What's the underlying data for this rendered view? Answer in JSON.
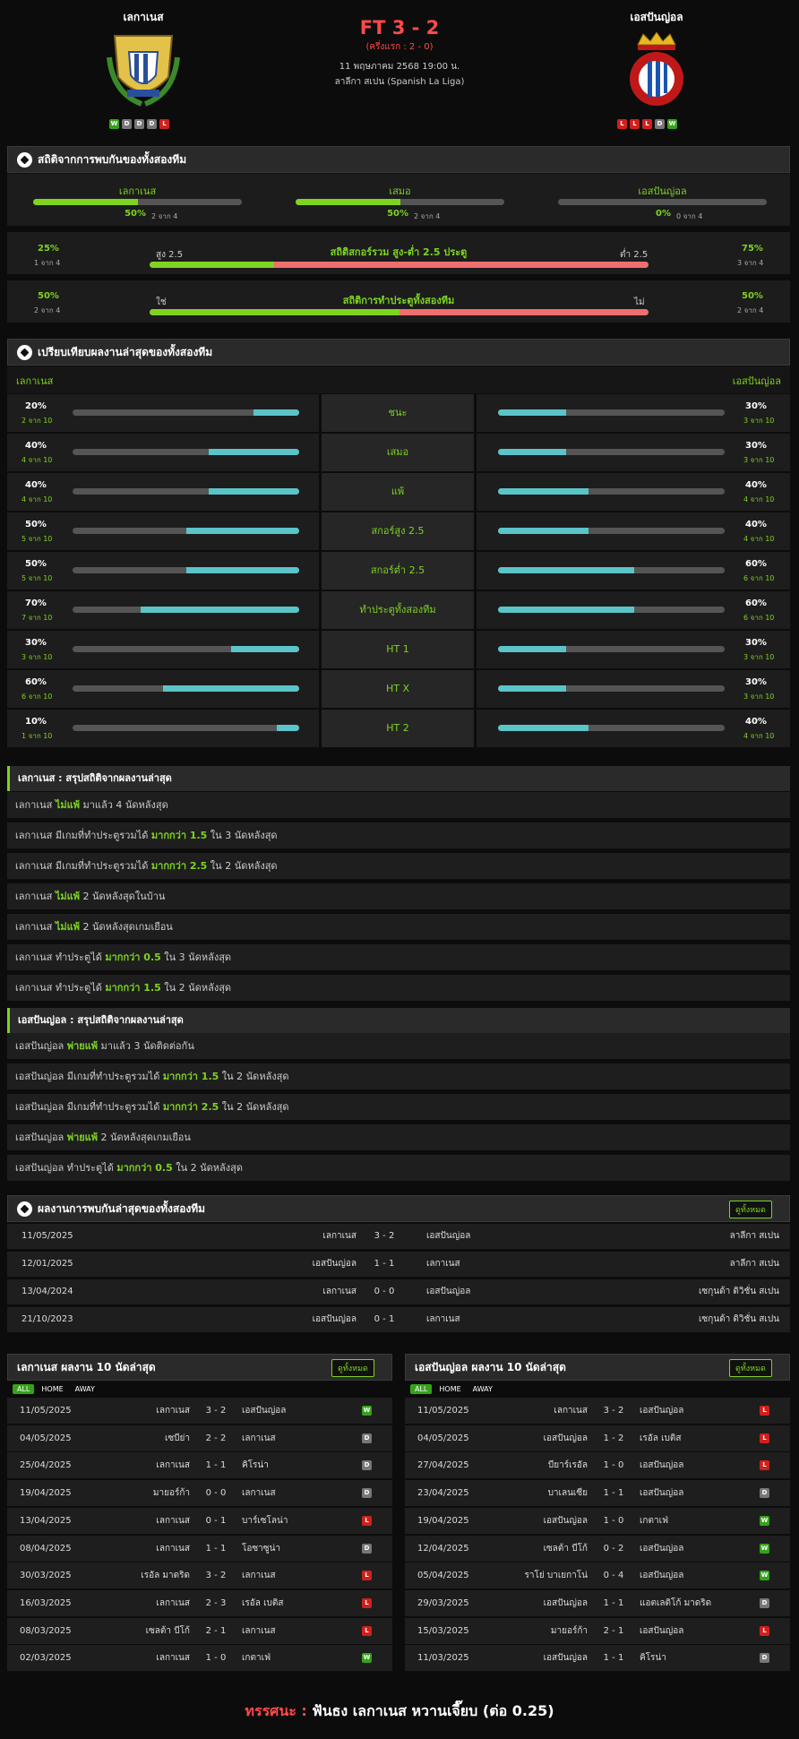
{
  "colors": {
    "accent": "#7ed321",
    "red": "#ff4a4a",
    "bar_green": "#7ed321",
    "bar_red": "#f06e6e",
    "bar_teal": "#5bc4c9"
  },
  "header": {
    "home_name": "เลกาเนส",
    "away_name": "เอสปันญ่อล",
    "score": "FT 3 - 2",
    "halftime": "(ครึ่งแรก : 2 - 0)",
    "datetime": "11 พฤษภาคม 2568 19:00 น.",
    "league": "ลาลีกา สเปน (Spanish La Liga)",
    "home_logo_text": "CLUB DEPORTIVO · S.A.D · LEGANES",
    "away_logo_text": "R.C.D. ESPANYOL · DE BARCELONA",
    "home_form": [
      "W",
      "D",
      "D",
      "D",
      "L"
    ],
    "away_form": [
      "L",
      "L",
      "L",
      "D",
      "W"
    ]
  },
  "h2h_stats": {
    "title": "สถิติจากการพบกันของทั้งสองทีม",
    "cols": [
      {
        "label": "เลกาเนส",
        "pct": "50%",
        "count": "2 จาก 4",
        "value": 0.5
      },
      {
        "label": "เสมอ",
        "pct": "50%",
        "count": "2 จาก 4",
        "value": 0.5
      },
      {
        "label": "เอสปันญ่อล",
        "pct": "0%",
        "count": "0 จาก 4",
        "value": 0
      }
    ]
  },
  "ou": {
    "title": "สถิติสกอร์รวม สูง-ต่ำ 2.5 ประตู",
    "left_pct": "25%",
    "left_count": "1 จาก 4",
    "left_label": "สูง 2.5",
    "right_label": "ต่ำ 2.5",
    "right_pct": "75%",
    "right_count": "3 จาก 4",
    "value": 0.25
  },
  "btts": {
    "title": "สถิติการทำประตูทั้งสองทีม",
    "left_pct": "50%",
    "left_count": "2 จาก 4",
    "left_label": "ใช่",
    "right_label": "ไม่",
    "right_pct": "50%",
    "right_count": "2 จาก 4",
    "value": 0.5
  },
  "compare": {
    "title": "เปรียบเทียบผลงานล่าสุดของทั้งสองทีม",
    "home": "เลกาเนส",
    "away": "เอสปันญ่อล",
    "rows": [
      {
        "label": "ชนะ",
        "h_pct": "20%",
        "h_cnt": "2 จาก 10",
        "h": 0.2,
        "a_pct": "30%",
        "a_cnt": "3 จาก 10",
        "a": 0.3
      },
      {
        "label": "เสมอ",
        "h_pct": "40%",
        "h_cnt": "4 จาก 10",
        "h": 0.4,
        "a_pct": "30%",
        "a_cnt": "3 จาก 10",
        "a": 0.3
      },
      {
        "label": "แพ้",
        "h_pct": "40%",
        "h_cnt": "4 จาก 10",
        "h": 0.4,
        "a_pct": "40%",
        "a_cnt": "4 จาก 10",
        "a": 0.4
      },
      {
        "label": "สกอร์สูง 2.5",
        "h_pct": "50%",
        "h_cnt": "5 จาก 10",
        "h": 0.5,
        "a_pct": "40%",
        "a_cnt": "4 จาก 10",
        "a": 0.4
      },
      {
        "label": "สกอร์ต่ำ 2.5",
        "h_pct": "50%",
        "h_cnt": "5 จาก 10",
        "h": 0.5,
        "a_pct": "60%",
        "a_cnt": "6 จาก 10",
        "a": 0.6
      },
      {
        "label": "ทำประตูทั้งสองทีม",
        "h_pct": "70%",
        "h_cnt": "7 จาก 10",
        "h": 0.7,
        "a_pct": "60%",
        "a_cnt": "6 จาก 10",
        "a": 0.6
      },
      {
        "label": "HT 1",
        "h_pct": "30%",
        "h_cnt": "3 จาก 10",
        "h": 0.3,
        "a_pct": "30%",
        "a_cnt": "3 จาก 10",
        "a": 0.3
      },
      {
        "label": "HT X",
        "h_pct": "60%",
        "h_cnt": "6 จาก 10",
        "h": 0.6,
        "a_pct": "30%",
        "a_cnt": "3 จาก 10",
        "a": 0.3
      },
      {
        "label": "HT 2",
        "h_pct": "10%",
        "h_cnt": "1 จาก 10",
        "h": 0.1,
        "a_pct": "40%",
        "a_cnt": "4 จาก 10",
        "a": 0.4
      }
    ]
  },
  "home_summary": {
    "title": "เลกาเนส : สรุปสถิติจากผลงานล่าสุด",
    "rows": [
      [
        {
          "t": "เลกาเนส "
        },
        {
          "t": "ไม่แพ้",
          "g": 1
        },
        {
          "t": " มาแล้ว 4 นัดหลังสุด"
        }
      ],
      [
        {
          "t": "เลกาเนส มีเกมที่ทำประตูรวมได้ "
        },
        {
          "t": "มากกว่า 1.5",
          "g": 1
        },
        {
          "t": " ใน 3 นัดหลังสุด"
        }
      ],
      [
        {
          "t": "เลกาเนส มีเกมที่ทำประตูรวมได้ "
        },
        {
          "t": "มากกว่า 2.5",
          "g": 1
        },
        {
          "t": " ใน 2 นัดหลังสุด"
        }
      ],
      [
        {
          "t": "เลกาเนส "
        },
        {
          "t": "ไม่แพ้",
          "g": 1
        },
        {
          "t": " 2 นัดหลังสุดในบ้าน"
        }
      ],
      [
        {
          "t": "เลกาเนส "
        },
        {
          "t": "ไม่แพ้",
          "g": 1
        },
        {
          "t": " 2 นัดหลังสุดเกมเยือน"
        }
      ],
      [
        {
          "t": "เลกาเนส ทำประตูได้ "
        },
        {
          "t": "มากกว่า 0.5",
          "g": 1
        },
        {
          "t": " ใน 3 นัดหลังสุด"
        }
      ],
      [
        {
          "t": "เลกาเนส ทำประตูได้ "
        },
        {
          "t": "มากกว่า 1.5",
          "g": 1
        },
        {
          "t": " ใน 2 นัดหลังสุด"
        }
      ]
    ]
  },
  "away_summary": {
    "title": "เอสปันญ่อล : สรุปสถิติจากผลงานล่าสุด",
    "rows": [
      [
        {
          "t": "เอสปันญ่อล "
        },
        {
          "t": "พ่ายแพ้",
          "g": 1
        },
        {
          "t": " มาแล้ว 3 นัดติดต่อกัน"
        }
      ],
      [
        {
          "t": "เอสปันญ่อล มีเกมที่ทำประตูรวมได้ "
        },
        {
          "t": "มากกว่า 1.5",
          "g": 1
        },
        {
          "t": " ใน 2 นัดหลังสุด"
        }
      ],
      [
        {
          "t": "เอสปันญ่อล มีเกมที่ทำประตูรวมได้ "
        },
        {
          "t": "มากกว่า 2.5",
          "g": 1
        },
        {
          "t": " ใน 2 นัดหลังสุด"
        }
      ],
      [
        {
          "t": "เอสปันญ่อล "
        },
        {
          "t": "พ่ายแพ้",
          "g": 1
        },
        {
          "t": " 2 นัดหลังสุดเกมเยือน"
        }
      ],
      [
        {
          "t": "เอสปันญ่อล ทำประตูได้ "
        },
        {
          "t": "มากกว่า 0.5",
          "g": 1
        },
        {
          "t": " ใน 2 นัดหลังสุด"
        }
      ]
    ]
  },
  "h2h_results": {
    "title": "ผลงานการพบกันล่าสุดของทั้งสองทีม",
    "view_all": "ดูทั้งหมด",
    "rows": [
      {
        "date": "11/05/2025",
        "home": "เลกาเนส",
        "score": "3 - 2",
        "away": "เอสปันญ่อล",
        "league": "ลาลีกา สเปน"
      },
      {
        "date": "12/01/2025",
        "home": "เอสปันญ่อล",
        "score": "1 - 1",
        "away": "เลกาเนส",
        "league": "ลาลีกา สเปน"
      },
      {
        "date": "13/04/2024",
        "home": "เลกาเนส",
        "score": "0 - 0",
        "away": "เอสปันญ่อล",
        "league": "เซกุนด้า ดิวิชั่น สเปน"
      },
      {
        "date": "21/10/2023",
        "home": "เอสปันญ่อล",
        "score": "0 - 1",
        "away": "เลกาเนส",
        "league": "เซกุนด้า ดิวิชั่น สเปน"
      }
    ]
  },
  "home_recent": {
    "title": "เลกาเนส ผลงาน 10 นัดล่าสุด",
    "view_all": "ดูทั้งหมด",
    "tabs": [
      "ALL",
      "HOME",
      "AWAY"
    ],
    "rows": [
      {
        "date": "11/05/2025",
        "home": "เลกาเนส",
        "score": "3 - 2",
        "away": "เอสปันญ่อล",
        "r": "W"
      },
      {
        "date": "04/05/2025",
        "home": "เซบีย่า",
        "score": "2 - 2",
        "away": "เลกาเนส",
        "r": "D"
      },
      {
        "date": "25/04/2025",
        "home": "เลกาเนส",
        "score": "1 - 1",
        "away": "คิโรน่า",
        "r": "D"
      },
      {
        "date": "19/04/2025",
        "home": "มายอร์ก้า",
        "score": "0 - 0",
        "away": "เลกาเนส",
        "r": "D"
      },
      {
        "date": "13/04/2025",
        "home": "เลกาเนส",
        "score": "0 - 1",
        "away": "บาร์เซโลน่า",
        "r": "L"
      },
      {
        "date": "08/04/2025",
        "home": "เลกาเนส",
        "score": "1 - 1",
        "away": "โอซาซูน่า",
        "r": "D"
      },
      {
        "date": "30/03/2025",
        "home": "เรอัล มาดริด",
        "score": "3 - 2",
        "away": "เลกาเนส",
        "r": "L"
      },
      {
        "date": "16/03/2025",
        "home": "เลกาเนส",
        "score": "2 - 3",
        "away": "เรอัล เบติส",
        "r": "L"
      },
      {
        "date": "08/03/2025",
        "home": "เซลต้า บีโก้",
        "score": "2 - 1",
        "away": "เลกาเนส",
        "r": "L"
      },
      {
        "date": "02/03/2025",
        "home": "เลกาเนส",
        "score": "1 - 0",
        "away": "เกตาเฟ่",
        "r": "W"
      }
    ]
  },
  "away_recent": {
    "title": "เอสปันญ่อล ผลงาน 10 นัดล่าสุด",
    "view_all": "ดูทั้งหมด",
    "tabs": [
      "ALL",
      "HOME",
      "AWAY"
    ],
    "rows": [
      {
        "date": "11/05/2025",
        "home": "เลกาเนส",
        "score": "3 - 2",
        "away": "เอสปันญ่อล",
        "r": "L"
      },
      {
        "date": "04/05/2025",
        "home": "เอสปันญ่อล",
        "score": "1 - 2",
        "away": "เรอัล เบติส",
        "r": "L"
      },
      {
        "date": "27/04/2025",
        "home": "บียาร์เรอัล",
        "score": "1 - 0",
        "away": "เอสปันญ่อล",
        "r": "L"
      },
      {
        "date": "23/04/2025",
        "home": "บาเลนเซีย",
        "score": "1 - 1",
        "away": "เอสปันญ่อล",
        "r": "D"
      },
      {
        "date": "19/04/2025",
        "home": "เอสปันญ่อล",
        "score": "1 - 0",
        "away": "เกตาเฟ่",
        "r": "W"
      },
      {
        "date": "12/04/2025",
        "home": "เซลต้า บีโก้",
        "score": "0 - 2",
        "away": "เอสปันญ่อล",
        "r": "W"
      },
      {
        "date": "05/04/2025",
        "home": "ราโย่ บาเยกาโน่",
        "score": "0 - 4",
        "away": "เอสปันญ่อล",
        "r": "W"
      },
      {
        "date": "29/03/2025",
        "home": "เอสปันญ่อล",
        "score": "1 - 1",
        "away": "แอตเลติโก้ มาดริด",
        "r": "D"
      },
      {
        "date": "15/03/2025",
        "home": "มายอร์ก้า",
        "score": "2 - 1",
        "away": "เอสปันญ่อล",
        "r": "L"
      },
      {
        "date": "11/03/2025",
        "home": "เอสปันญ่อล",
        "score": "1 - 1",
        "away": "คิโรน่า",
        "r": "D"
      }
    ]
  },
  "verdict": {
    "label": "ทรรศนะ :",
    "text": "ฟันธง เลกาเนส หวานเจี๊ยบ (ต่อ 0.25)"
  }
}
